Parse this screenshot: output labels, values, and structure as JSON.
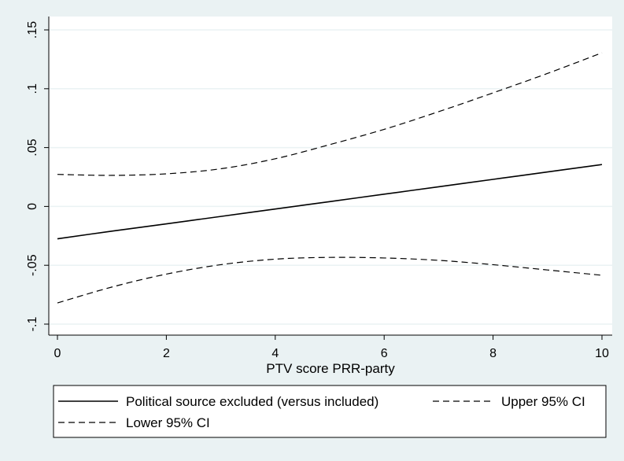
{
  "chart_data": {
    "type": "line",
    "xlabel": "PTV score PRR-party",
    "ylabel": "",
    "title": "",
    "xlim": [
      0,
      10
    ],
    "ylim": [
      -0.1,
      0.15
    ],
    "x_ticks": [
      0,
      2,
      4,
      6,
      8,
      10
    ],
    "x_tick_labels": [
      "0",
      "2",
      "4",
      "6",
      "8",
      "10"
    ],
    "y_ticks": [
      -0.1,
      -0.05,
      0,
      0.05,
      0.1,
      0.15
    ],
    "y_tick_labels": [
      "-.1",
      "-.05",
      "0",
      ".05",
      ".1",
      ".15"
    ],
    "grid": true,
    "legend_position": "bottom",
    "x": [
      0,
      1,
      2,
      3,
      4,
      5,
      6,
      7,
      8,
      9,
      10
    ],
    "series": [
      {
        "name": "Political source excluded (versus included)",
        "style": "solid",
        "values": [
          -0.0275,
          -0.021,
          -0.0148,
          -0.0085,
          -0.0022,
          0.0041,
          0.0104,
          0.0167,
          0.023,
          0.0293,
          0.0356
        ]
      },
      {
        "name": "Upper 95% CI",
        "style": "dashed",
        "values": [
          0.0272,
          0.0264,
          0.0277,
          0.032,
          0.0405,
          0.0525,
          0.0655,
          0.0805,
          0.0965,
          0.113,
          0.1305
        ]
      },
      {
        "name": "Lower 95% CI",
        "style": "dashed",
        "values": [
          -0.082,
          -0.0685,
          -0.0575,
          -0.0495,
          -0.0448,
          -0.0433,
          -0.0438,
          -0.0458,
          -0.0495,
          -0.054,
          -0.0585
        ]
      }
    ],
    "colors": {
      "background": "#eaf2f3",
      "plot_area": "#ffffff",
      "grid": "#eaf2f3",
      "line": "#000000"
    }
  }
}
